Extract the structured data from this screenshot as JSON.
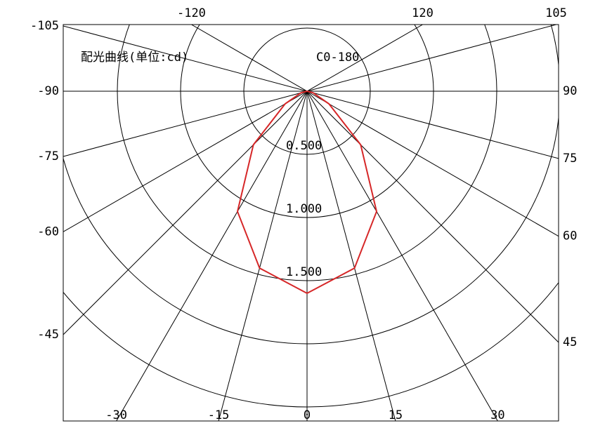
{
  "chart_data": {
    "type": "polar",
    "title": "配光曲线(单位:cd)",
    "angle_ticks": [
      -105,
      -120,
      120,
      105,
      -90,
      90,
      -75,
      75,
      -60,
      60,
      -45,
      45,
      -30,
      -15,
      0,
      15,
      30
    ],
    "rlim": [
      0,
      2
    ],
    "rticks": [
      {
        "value": 0.5,
        "label": "0.500"
      },
      {
        "value": 1.0,
        "label": "1.000"
      },
      {
        "value": 1.5,
        "label": "1.500"
      }
    ],
    "theta": [
      -90,
      -75,
      -60,
      -45,
      -30,
      -15,
      0,
      15,
      30,
      45,
      60,
      75,
      90
    ],
    "series": [
      {
        "name": "C0-180",
        "color": "#d62728",
        "values": [
          0,
          0.05,
          0.2,
          0.6,
          1.1,
          1.45,
          1.6,
          1.45,
          1.1,
          0.6,
          0.2,
          0.05,
          0
        ]
      }
    ]
  }
}
